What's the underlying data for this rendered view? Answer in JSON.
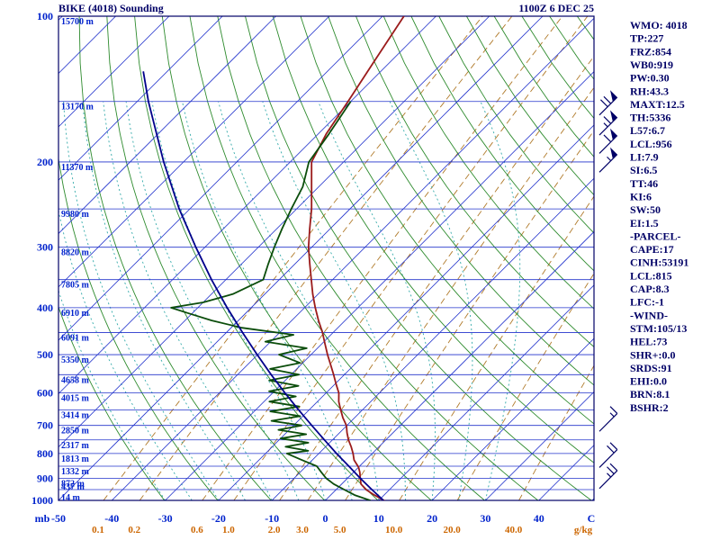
{
  "header": {
    "title": "BIKE (4018) Sounding",
    "datetime": "1100Z 6 DEC 25"
  },
  "axes": {
    "pressure_unit": "mb",
    "pressure_ticks": [
      100,
      200,
      300,
      400,
      500,
      600,
      700,
      800,
      900,
      1000
    ],
    "pressure_lines": [
      100,
      150,
      200,
      250,
      300,
      350,
      400,
      450,
      500,
      550,
      600,
      650,
      700,
      750,
      800,
      850,
      900,
      950,
      1000
    ],
    "heights": [
      {
        "p": 100,
        "label": "15700 m"
      },
      {
        "p": 150,
        "label": "13170 m"
      },
      {
        "p": 200,
        "label": "11370 m"
      },
      {
        "p": 250,
        "label": "9980 m"
      },
      {
        "p": 300,
        "label": "8820 m"
      },
      {
        "p": 350,
        "label": "7805 m"
      },
      {
        "p": 400,
        "label": "6910 m"
      },
      {
        "p": 450,
        "label": "6091 m"
      },
      {
        "p": 500,
        "label": "5350 m"
      },
      {
        "p": 550,
        "label": "4658 m"
      },
      {
        "p": 600,
        "label": "4015 m"
      },
      {
        "p": 650,
        "label": "3414 m"
      },
      {
        "p": 700,
        "label": "2850 m"
      },
      {
        "p": 750,
        "label": "2317 m"
      },
      {
        "p": 800,
        "label": "1813 m"
      },
      {
        "p": 850,
        "label": "1332 m"
      },
      {
        "p": 900,
        "label": "872 m"
      },
      {
        "p": 950,
        "label": "437 m"
      },
      {
        "p": 1000,
        "label": "14 m"
      }
    ],
    "temp_ticks": [
      -50,
      -40,
      -30,
      -20,
      -10,
      0,
      10,
      20,
      30,
      40
    ],
    "temp_unit": "C",
    "mixing_ratio_labels": [
      "0.1",
      "0.2",
      "0.6",
      "1.0",
      "2.0",
      "3.0",
      "5.0",
      "10.0",
      "20.0",
      "40.0"
    ],
    "mixing_unit": "g/kg"
  },
  "indices": [
    "WMO: 4018",
    "TP:227",
    "FRZ:854",
    "WB0:919",
    "PW:0.30",
    "RH:43.3",
    "MAXT:12.5",
    "TH:5336",
    "L57:6.7",
    "LCL:956",
    "LI:7.9",
    "SI:6.5",
    "TT:46",
    "KI:6",
    "SW:50",
    "EI:1.5",
    "-PARCEL-",
    "CAPE:17",
    "CINH:53191",
    "LCL:815",
    "CAP:8.3",
    "LFC:-1",
    "-WIND-",
    "STM:105/13",
    "HEL:73",
    "SHR+:0.0",
    "SRDS:91",
    "EHI:0.0",
    "BRN:8.1",
    "BSHR:2"
  ],
  "colors": {
    "frame": "#000066",
    "axis_text": "#0022cc",
    "title_text": "#000066",
    "isotherm": "#2233cc",
    "pressure_line": "#2233cc",
    "dry_adiabat": "#2e8b2e",
    "moist_adiabat": "#33aaaa",
    "mixing_ratio": "#b07a2a",
    "mixing_text": "#cc6600",
    "temperature": "#9b1b1b",
    "dewpoint": "#0b4d0b",
    "parcel": "#00008b",
    "indices_text": "#000066",
    "wind_barb": "#000066"
  },
  "chart_data": {
    "type": "line",
    "variant": "skew-t-log-p",
    "x_axis": {
      "label": "Temperature (C)",
      "range": [
        -50,
        45
      ]
    },
    "y_axis": {
      "label": "Pressure (mb)",
      "range": [
        1000,
        100
      ],
      "scale": "log"
    },
    "series": [
      {
        "name": "temperature",
        "color_key": "temperature",
        "points": [
          [
            1007,
            11.4
          ],
          [
            1000,
            11.0
          ],
          [
            975,
            8.2
          ],
          [
            950,
            5.6
          ],
          [
            925,
            3.6
          ],
          [
            900,
            2.4
          ],
          [
            875,
            1.2
          ],
          [
            854,
            0.0
          ],
          [
            825,
            -2.2
          ],
          [
            800,
            -3.6
          ],
          [
            775,
            -5.2
          ],
          [
            750,
            -7.0
          ],
          [
            725,
            -8.6
          ],
          [
            700,
            -10.1
          ],
          [
            675,
            -12.2
          ],
          [
            650,
            -14.1
          ],
          [
            625,
            -16.0
          ],
          [
            600,
            -17.6
          ],
          [
            575,
            -19.8
          ],
          [
            550,
            -22.0
          ],
          [
            525,
            -24.4
          ],
          [
            500,
            -26.9
          ],
          [
            475,
            -29.4
          ],
          [
            450,
            -32.0
          ],
          [
            425,
            -35.0
          ],
          [
            400,
            -38.0
          ],
          [
            375,
            -41.0
          ],
          [
            350,
            -44.0
          ],
          [
            325,
            -47.2
          ],
          [
            300,
            -50.6
          ],
          [
            275,
            -53.8
          ],
          [
            250,
            -57.2
          ],
          [
            227,
            -61.0
          ],
          [
            200,
            -66.0
          ],
          [
            175,
            -68.5
          ],
          [
            150,
            -70.5
          ],
          [
            125,
            -73.0
          ],
          [
            100,
            -76.0
          ]
        ]
      },
      {
        "name": "dewpoint",
        "color_key": "dewpoint",
        "points": [
          [
            1007,
            8.8
          ],
          [
            1000,
            8.4
          ],
          [
            975,
            4.5
          ],
          [
            950,
            1.5
          ],
          [
            925,
            -1.5
          ],
          [
            900,
            -4.0
          ],
          [
            875,
            -6.0
          ],
          [
            850,
            -8.0
          ],
          [
            825,
            -12.0
          ],
          [
            800,
            -16.0
          ],
          [
            790,
            -12.5
          ],
          [
            775,
            -17.5
          ],
          [
            760,
            -14.0
          ],
          [
            745,
            -20.0
          ],
          [
            730,
            -16.0
          ],
          [
            715,
            -22.0
          ],
          [
            700,
            -18.5
          ],
          [
            685,
            -25.0
          ],
          [
            670,
            -20.5
          ],
          [
            655,
            -27.0
          ],
          [
            640,
            -22.5
          ],
          [
            625,
            -29.0
          ],
          [
            610,
            -25.0
          ],
          [
            595,
            -31.0
          ],
          [
            580,
            -26.5
          ],
          [
            565,
            -33.0
          ],
          [
            550,
            -28.5
          ],
          [
            535,
            -35.0
          ],
          [
            520,
            -30.5
          ],
          [
            500,
            -36.0
          ],
          [
            485,
            -32.0
          ],
          [
            470,
            -41.0
          ],
          [
            455,
            -37.0
          ],
          [
            440,
            -48.0
          ],
          [
            425,
            -55.0
          ],
          [
            410,
            -61.0
          ],
          [
            400,
            -65.0
          ],
          [
            390,
            -60.0
          ],
          [
            375,
            -56.0
          ],
          [
            350,
            -53.0
          ],
          [
            325,
            -55.0
          ],
          [
            300,
            -57.0
          ],
          [
            275,
            -59.0
          ],
          [
            250,
            -61.0
          ],
          [
            225,
            -63.0
          ],
          [
            200,
            -66.5
          ],
          [
            175,
            -68.0
          ],
          [
            150,
            -70.0
          ]
        ]
      },
      {
        "name": "parcel",
        "color_key": "parcel",
        "points": [
          [
            1000,
            10.9
          ],
          [
            950,
            6.7
          ],
          [
            900,
            2.4
          ],
          [
            850,
            -2.0
          ],
          [
            800,
            -6.7
          ],
          [
            750,
            -11.5
          ],
          [
            700,
            -16.6
          ],
          [
            650,
            -22.0
          ],
          [
            600,
            -27.7
          ],
          [
            550,
            -33.7
          ],
          [
            500,
            -40.1
          ],
          [
            450,
            -47.0
          ],
          [
            400,
            -54.5
          ],
          [
            350,
            -62.7
          ],
          [
            300,
            -71.7
          ],
          [
            250,
            -82.0
          ],
          [
            200,
            -93.7
          ],
          [
            150,
            -107.9
          ],
          [
            130,
            -114.5
          ]
        ]
      }
    ],
    "winds": [
      {
        "p": 160,
        "speed_kt": 70
      },
      {
        "p": 176,
        "speed_kt": 65
      },
      {
        "p": 192,
        "speed_kt": 60
      },
      {
        "p": 210,
        "speed_kt": 55
      },
      {
        "p": 720,
        "speed_kt": 15
      },
      {
        "p": 855,
        "speed_kt": 20
      },
      {
        "p": 945,
        "speed_kt": 25
      }
    ]
  }
}
